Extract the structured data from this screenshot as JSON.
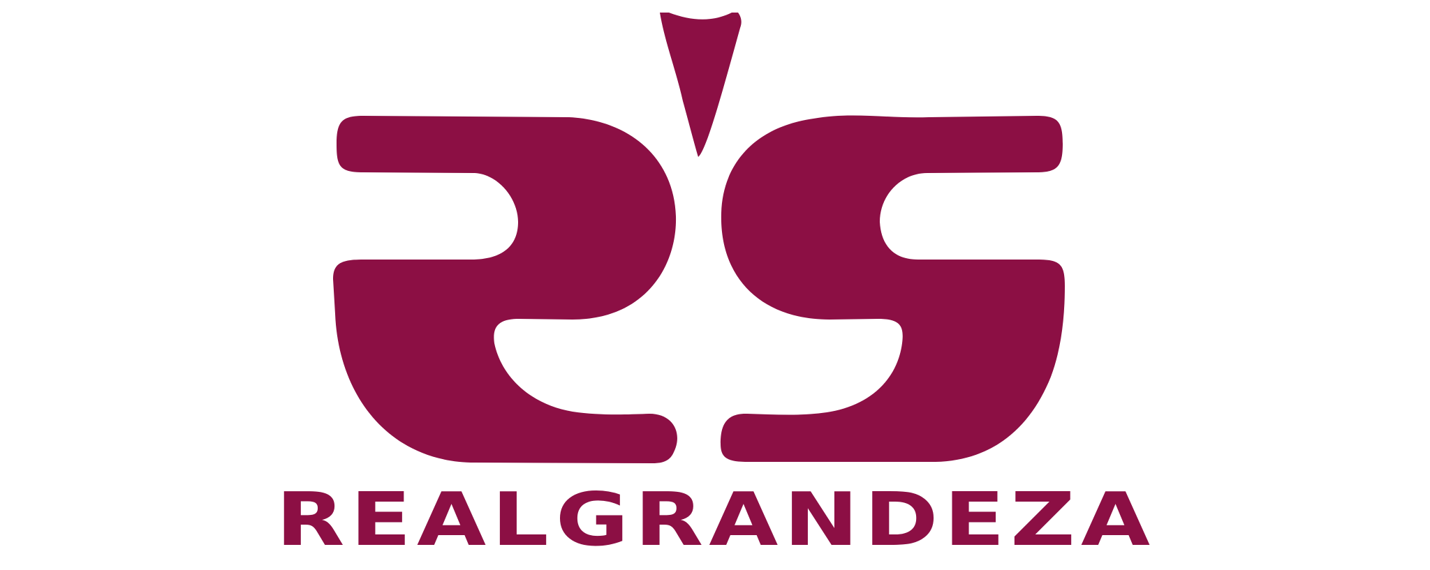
{
  "brand": {
    "name_word_1": "REAL",
    "name_word_2": "GRANDEZA",
    "color": "#8c0f44",
    "mark_icon": "double-z-s-monogram-icon"
  }
}
